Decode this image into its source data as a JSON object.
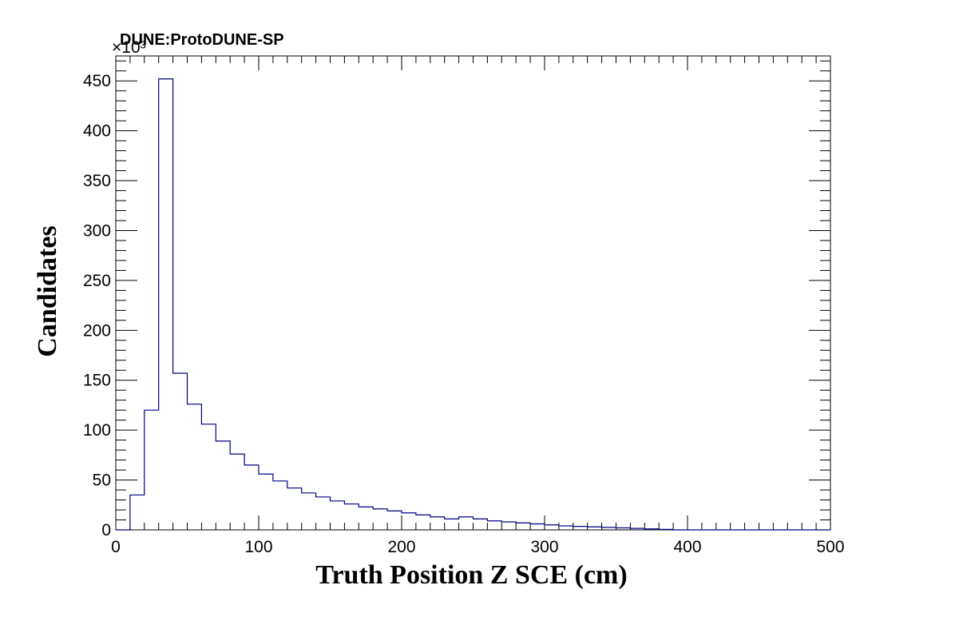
{
  "chart_data": {
    "type": "histogram",
    "title": "DUNE:ProtoDUNE-SP",
    "xlabel": "Truth Position Z SCE (cm)",
    "ylabel": "Candidates",
    "y_multiplier_label": "×10³",
    "xlim": [
      0,
      500
    ],
    "ylim": [
      0,
      475
    ],
    "x_ticks": [
      0,
      100,
      200,
      300,
      400,
      500
    ],
    "y_ticks": [
      0,
      50,
      100,
      150,
      200,
      250,
      300,
      350,
      400,
      450
    ],
    "bin_edges": [
      0,
      10,
      20,
      30,
      40,
      50,
      60,
      70,
      80,
      90,
      100,
      110,
      120,
      130,
      140,
      150,
      160,
      170,
      180,
      190,
      200,
      210,
      220,
      230,
      240,
      250,
      260,
      270,
      280,
      290,
      300,
      310,
      320,
      330,
      340,
      350,
      360,
      370,
      380,
      390,
      400,
      410,
      420,
      430,
      440,
      450,
      460,
      470,
      480,
      490,
      500
    ],
    "values": [
      0,
      35,
      120,
      452,
      157,
      126,
      106,
      89,
      76,
      65,
      56,
      49,
      42,
      37,
      33,
      29,
      26,
      23,
      21,
      19,
      17,
      15,
      13,
      11,
      13,
      11,
      9,
      8,
      7,
      6,
      5,
      4,
      3.5,
      3,
      2.5,
      2,
      1.5,
      1,
      0.5,
      0,
      0,
      0,
      0,
      0,
      0,
      0,
      0,
      0,
      0,
      0
    ],
    "line_color": "#000080",
    "grid": false
  }
}
